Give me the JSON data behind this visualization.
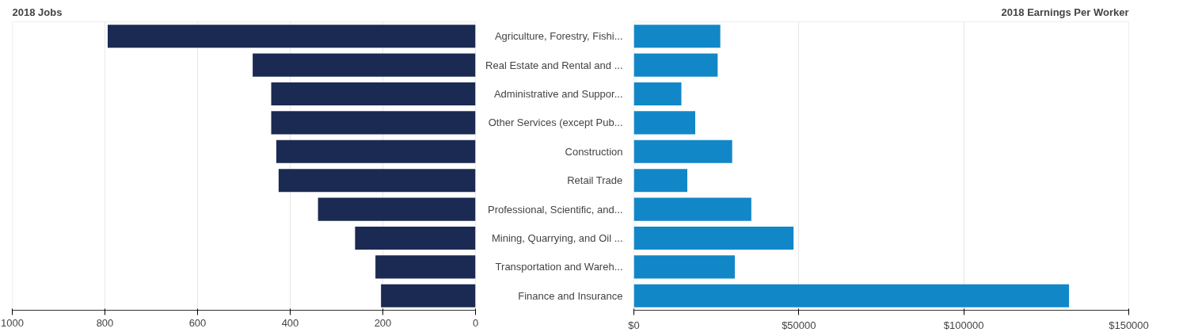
{
  "chart_data": [
    {
      "type": "bar",
      "orientation": "horizontal",
      "title": "2018 Jobs",
      "categories": [
        null,
        null,
        null,
        null,
        null,
        null,
        null,
        null,
        null,
        null
      ],
      "values": [
        794,
        481,
        441,
        441,
        430,
        425,
        340,
        260,
        216,
        204
      ],
      "color": "#1a2a52",
      "xlim": [
        1000,
        0
      ],
      "xticks": [
        1000,
        800,
        600,
        400,
        200,
        0
      ],
      "grid": "x",
      "tick_labels": "x"
    },
    {
      "type": "bar",
      "orientation": "horizontal",
      "title": "2018 Earnings Per Worker",
      "categories": [
        "Agriculture, Forestry, Fishi...",
        "Real Estate and Rental and ...",
        "Administrative and Suppor...",
        "Other Services (except Pub...",
        "Construction",
        "Retail Trade",
        "Professional, Scientific, and...",
        "Mining, Quarrying, and Oil ...",
        "Transportation and Wareh...",
        "Finance and Insurance"
      ],
      "values": [
        26200,
        25400,
        14400,
        18600,
        29800,
        16200,
        35600,
        48400,
        30600,
        131900
      ],
      "color": "#1287c8",
      "xlim": [
        0,
        150000
      ],
      "xticks": [
        {
          "value": 0,
          "label": "$0"
        },
        {
          "value": 50000,
          "label": "$50000"
        },
        {
          "value": 100000,
          "label": "$100000"
        },
        {
          "value": 150000,
          "label": "$150000"
        }
      ],
      "grid": "x"
    }
  ]
}
